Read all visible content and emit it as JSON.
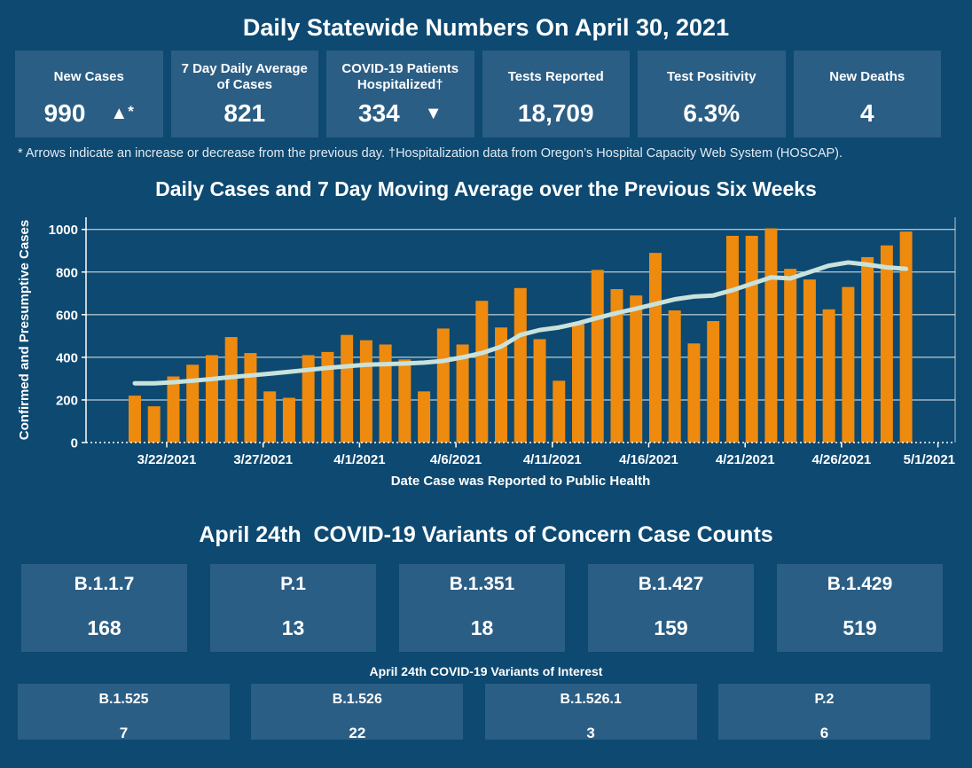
{
  "page": {
    "title": "Daily Statewide Numbers On April 30, 2021",
    "footnote": "* Arrows indicate an increase or decrease from the previous day. †Hospitalization data from Oregon’s Hospital Capacity Web System (HOSCAP)."
  },
  "colors": {
    "background": "#0d4971",
    "card": "#2b5e85",
    "bar": "#ee8a0d",
    "avg_line": "#c9e2dc",
    "text": "#ffffff"
  },
  "stat_cards": [
    {
      "label": "New Cases",
      "value": "990",
      "arrow": "▲",
      "arrow_note": "*"
    },
    {
      "label": "7 Day Daily Average of Cases",
      "value": "821"
    },
    {
      "label": "COVID-19 Patients Hospitalized†",
      "value": "334",
      "arrow": "▼"
    },
    {
      "label": "Tests Reported",
      "value": "18,709"
    },
    {
      "label": "Test Positivity",
      "value": "6.3%"
    },
    {
      "label": "New Deaths",
      "value": "4"
    }
  ],
  "chart_data": {
    "type": "bar",
    "title": "Daily Cases and 7 Day Moving Average over the Previous Six Weeks",
    "xlabel": "Date Case was Reported to Public Health",
    "ylabel": "Confirmed and Presumptive Cases",
    "ylim": [
      0,
      1057
    ],
    "yticks": [
      0,
      200,
      400,
      600,
      800,
      1000
    ],
    "grid": true,
    "legend": "none",
    "x_tick_labels": [
      "3/22/2021",
      "3/27/2021",
      "4/1/2021",
      "4/6/2021",
      "4/11/2021",
      "4/16/2021",
      "4/21/2021",
      "4/26/2021",
      "5/1/2021"
    ],
    "n_bars": 41,
    "series": [
      {
        "name": "Daily Cases",
        "mark": "bar",
        "color": "#ee8a0d",
        "values": [
          220,
          170,
          310,
          365,
          410,
          495,
          420,
          240,
          210,
          410,
          425,
          505,
          480,
          460,
          390,
          240,
          535,
          460,
          665,
          540,
          725,
          485,
          290,
          555,
          810,
          720,
          690,
          890,
          620,
          465,
          570,
          970,
          970,
          1005,
          815,
          765,
          625,
          730,
          870,
          925,
          990
        ]
      },
      {
        "name": "7 Day Moving Average",
        "mark": "line",
        "color": "#c9e2dc",
        "values": [
          278,
          278,
          283,
          290,
          298,
          307,
          315,
          323,
          332,
          341,
          350,
          358,
          365,
          368,
          371,
          375,
          383,
          400,
          420,
          450,
          505,
          528,
          540,
          560,
          585,
          608,
          628,
          650,
          672,
          685,
          690,
          715,
          745,
          775,
          770,
          800,
          830,
          845,
          835,
          822,
          815
        ]
      }
    ]
  },
  "voc": {
    "title": "April 24th  COVID-19 Variants of Concern Case Counts",
    "cards": [
      {
        "label": "B.1.1.7",
        "value": "168"
      },
      {
        "label": "P.1",
        "value": "13"
      },
      {
        "label": "B.1.351",
        "value": "18"
      },
      {
        "label": "B.1.427",
        "value": "159"
      },
      {
        "label": "B.1.429",
        "value": "519"
      }
    ]
  },
  "voi": {
    "title": "April 24th COVID-19 Variants of Interest",
    "cards": [
      {
        "label": "B.1.525",
        "value": "7"
      },
      {
        "label": "B.1.526",
        "value": "22"
      },
      {
        "label": "B.1.526.1",
        "value": "3"
      },
      {
        "label": "P.2",
        "value": "6"
      }
    ]
  }
}
